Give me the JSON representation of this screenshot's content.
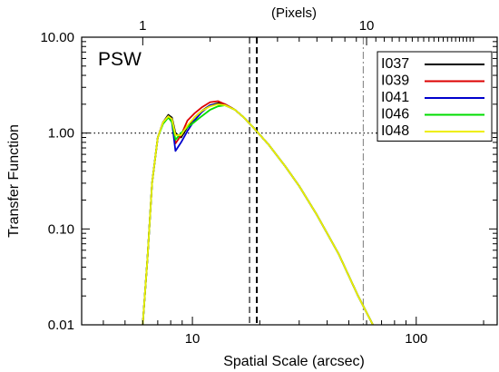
{
  "chart_data": {
    "type": "line",
    "panel_label": "PSW",
    "xlabel": "Spatial Scale (arcsec)",
    "ylabel": "Transfer Function",
    "top_axis_label": "(Pixels)",
    "xscale": "log",
    "yscale": "log",
    "xlim": [
      3.2,
      230
    ],
    "ylim": [
      0.01,
      10
    ],
    "x_ticks": [
      10,
      100
    ],
    "x_tick_labels": [
      "10",
      "100"
    ],
    "y_ticks": [
      0.01,
      0.1,
      1,
      10
    ],
    "y_tick_labels": [
      "0.01",
      "0.10",
      "1.00",
      "10.00"
    ],
    "top_ticks_arcsec": [
      6,
      60
    ],
    "top_tick_labels": [
      "1",
      "10"
    ],
    "reference_lines": [
      {
        "orientation": "horizontal",
        "value": 1.0,
        "style": "dotted"
      },
      {
        "orientation": "vertical",
        "value": 18.0,
        "style": "dashed"
      },
      {
        "orientation": "vertical",
        "value": 19.4,
        "style": "dashed-bold"
      },
      {
        "orientation": "vertical",
        "value": 58.0,
        "style": "dash-dot"
      }
    ],
    "legend_position": "top-right",
    "series": [
      {
        "name": "I037",
        "color": "#000000",
        "x": [
          6.0,
          6.3,
          6.6,
          7.0,
          7.4,
          7.8,
          8.1,
          8.4,
          8.9,
          9.5,
          10.2,
          11.0,
          12.0,
          13.0,
          14.0,
          15.5,
          17.0,
          19.0,
          22.0,
          26.0,
          30.0,
          36.0,
          45.0,
          55.0,
          64.0
        ],
        "y": [
          0.01,
          0.05,
          0.3,
          0.9,
          1.3,
          1.55,
          1.45,
          1.0,
          0.9,
          1.15,
          1.45,
          1.7,
          1.95,
          2.05,
          2.0,
          1.75,
          1.45,
          1.1,
          0.75,
          0.45,
          0.28,
          0.14,
          0.055,
          0.02,
          0.01
        ]
      },
      {
        "name": "I039",
        "color": "#dd0000",
        "x": [
          6.0,
          6.3,
          6.6,
          7.0,
          7.4,
          7.8,
          8.1,
          8.4,
          8.9,
          9.5,
          10.2,
          11.0,
          12.0,
          13.0,
          14.0,
          15.5,
          17.0,
          19.0,
          22.0,
          26.0,
          30.0,
          36.0,
          45.0,
          55.0,
          64.0
        ],
        "y": [
          0.01,
          0.05,
          0.3,
          0.9,
          1.3,
          1.5,
          1.35,
          0.78,
          0.95,
          1.35,
          1.6,
          1.85,
          2.1,
          2.15,
          2.0,
          1.75,
          1.45,
          1.1,
          0.75,
          0.45,
          0.28,
          0.14,
          0.055,
          0.02,
          0.01
        ]
      },
      {
        "name": "I041",
        "color": "#0000cc",
        "x": [
          6.0,
          6.3,
          6.6,
          7.0,
          7.4,
          7.8,
          8.1,
          8.4,
          8.9,
          9.5,
          10.2,
          11.0,
          12.0,
          13.0,
          14.0,
          15.5,
          17.0,
          19.0,
          22.0,
          26.0,
          30.0,
          36.0,
          45.0,
          55.0,
          64.0
        ],
        "y": [
          0.01,
          0.05,
          0.3,
          0.9,
          1.3,
          1.5,
          1.3,
          0.65,
          0.8,
          1.05,
          1.35,
          1.65,
          1.95,
          2.0,
          1.95,
          1.75,
          1.45,
          1.1,
          0.75,
          0.45,
          0.28,
          0.14,
          0.055,
          0.02,
          0.01
        ]
      },
      {
        "name": "I046",
        "color": "#00dd00",
        "x": [
          6.0,
          6.3,
          6.6,
          7.0,
          7.4,
          7.8,
          8.1,
          8.4,
          8.9,
          9.5,
          10.2,
          11.0,
          12.0,
          13.0,
          14.0,
          15.5,
          17.0,
          19.0,
          22.0,
          26.0,
          30.0,
          36.0,
          45.0,
          55.0,
          64.0
        ],
        "y": [
          0.01,
          0.05,
          0.3,
          0.9,
          1.25,
          1.45,
          1.3,
          0.85,
          1.0,
          1.15,
          1.3,
          1.5,
          1.75,
          1.9,
          1.95,
          1.75,
          1.45,
          1.1,
          0.75,
          0.45,
          0.28,
          0.14,
          0.055,
          0.02,
          0.01
        ]
      },
      {
        "name": "I048",
        "color": "#eeee00",
        "x": [
          6.0,
          6.3,
          6.6,
          7.0,
          7.4,
          7.8,
          8.1,
          8.4,
          8.9,
          9.5,
          10.2,
          11.0,
          12.0,
          13.0,
          14.0,
          15.5,
          17.0,
          19.0,
          22.0,
          26.0,
          30.0,
          36.0,
          45.0,
          55.0,
          64.0
        ],
        "y": [
          0.01,
          0.05,
          0.3,
          0.9,
          1.3,
          1.5,
          1.4,
          0.95,
          0.95,
          1.2,
          1.45,
          1.7,
          1.9,
          2.0,
          1.95,
          1.75,
          1.45,
          1.1,
          0.75,
          0.45,
          0.28,
          0.14,
          0.055,
          0.02,
          0.01
        ]
      }
    ]
  }
}
